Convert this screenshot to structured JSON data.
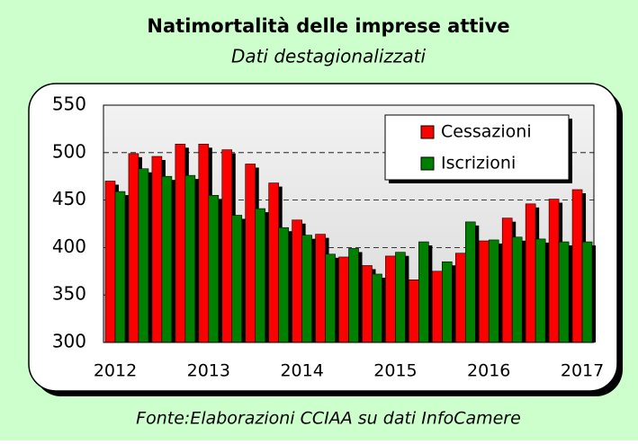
{
  "chart_data": {
    "type": "bar",
    "title": "Natimortalità delle imprese attive",
    "subtitle": "Dati destagionalizzati",
    "source": "Fonte:Elaborazioni CCIAA su dati InfoCamere",
    "categories": [
      "2012",
      null,
      null,
      null,
      "2013",
      null,
      null,
      null,
      "2014",
      null,
      null,
      null,
      "2015",
      null,
      null,
      null,
      "2016",
      null,
      null,
      null,
      "2017"
    ],
    "series": [
      {
        "name": "Cessazioni",
        "color": "#ff0000",
        "values": [
          470,
          499,
          496,
          509,
          509,
          503,
          488,
          468,
          429,
          414,
          390,
          381,
          391,
          366,
          375,
          394,
          407,
          431,
          446,
          451,
          461
        ]
      },
      {
        "name": "Iscrizioni",
        "color": "#008000",
        "values": [
          459,
          483,
          475,
          476,
          455,
          434,
          441,
          421,
          413,
          393,
          399,
          372,
          395,
          406,
          385,
          427,
          408,
          411,
          409,
          406,
          406
        ]
      }
    ],
    "ylim": [
      300,
      550
    ],
    "yticks": [
      300,
      350,
      400,
      450,
      500,
      550
    ],
    "grid": true,
    "legend": "top-right"
  }
}
